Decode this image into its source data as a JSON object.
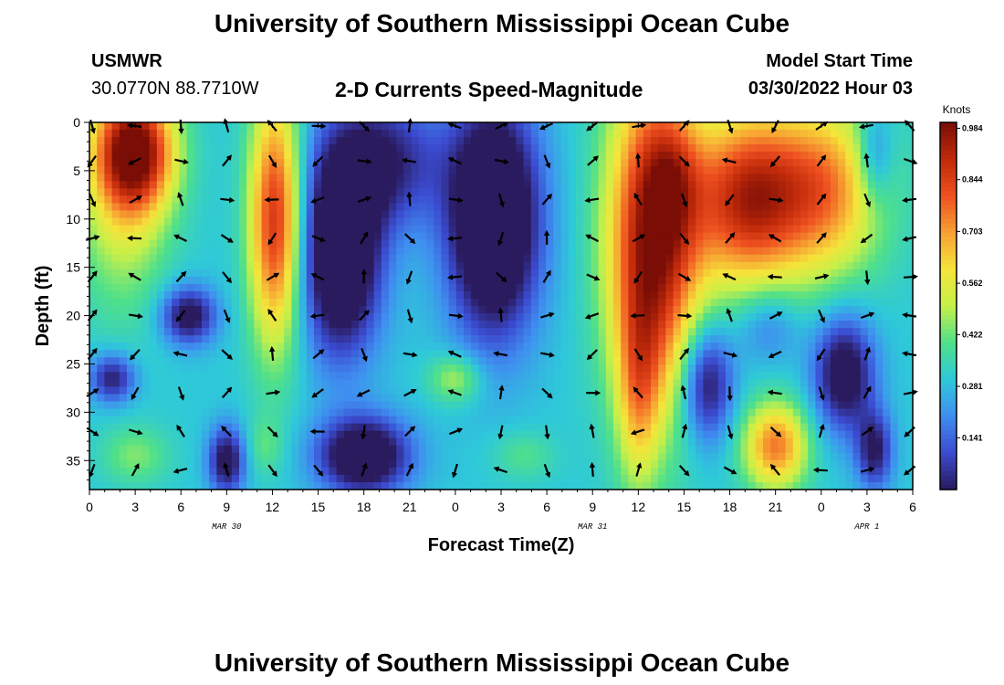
{
  "header": {
    "title": "University of Southern Mississippi Ocean Cube",
    "station": "USMWR",
    "coords": "30.0770N  88.7710W",
    "subtitle": "2-D Currents Speed-Magnitude",
    "model_label": "Model Start Time",
    "model_time": "03/30/2022 Hour 03"
  },
  "footer": {
    "title": "University of Southern Mississippi Ocean Cube"
  },
  "colors": {
    "arrow": "#000000",
    "colormap": [
      "#2a1a5e",
      "#3b4bd0",
      "#3f8ef0",
      "#2ec9d9",
      "#4fe08a",
      "#c5f04a",
      "#f5e43a",
      "#f7a032",
      "#ee5020",
      "#c02a0a",
      "#7a0d06"
    ]
  },
  "chart_data": {
    "type": "heatmap",
    "title": "2-D Currents Speed-Magnitude",
    "xlabel": "Forecast Time(Z)",
    "ylabel": "Depth (ft)",
    "x_range_hours": [
      0,
      54
    ],
    "x_ticks": [
      0,
      3,
      6,
      9,
      12,
      15,
      18,
      21,
      24,
      27,
      30,
      33,
      36,
      39,
      42,
      45,
      48,
      51,
      54
    ],
    "x_tick_labels": [
      "0",
      "3",
      "6",
      "9",
      "12",
      "15",
      "18",
      "21",
      "0",
      "3",
      "6",
      "9",
      "12",
      "15",
      "18",
      "21",
      "0",
      "3",
      "6"
    ],
    "date_labels": [
      {
        "hour": 9,
        "label": "MAR 30"
      },
      {
        "hour": 33,
        "label": "MAR 31"
      },
      {
        "hour": 51,
        "label": "APR 1"
      }
    ],
    "y_range_ft": [
      0,
      38
    ],
    "y_ticks": [
      0,
      5,
      10,
      15,
      20,
      25,
      30,
      35
    ],
    "y_tick_labels": [
      "0",
      "5",
      "10",
      "15",
      "20",
      "25",
      "30",
      "35"
    ],
    "colorbar": {
      "label": "Knots",
      "range": [
        0,
        1.0
      ],
      "ticks": [
        "0.984",
        "0.844",
        "0.703",
        "0.562",
        "0.422",
        "0.281",
        "0.141"
      ],
      "tick_values": [
        0.984,
        0.844,
        0.703,
        0.562,
        0.422,
        0.281,
        0.141
      ]
    },
    "arrow_depths_ft": [
      0,
      4,
      8,
      12,
      16,
      20,
      24,
      28,
      32,
      36
    ],
    "arrow_hours": [
      0,
      3,
      6,
      9,
      12,
      15,
      18,
      21,
      24,
      27,
      30,
      33,
      36,
      39,
      42,
      45,
      48,
      51,
      54
    ],
    "speed_features": [
      {
        "hour": 3,
        "depth": 3,
        "speed": 0.62,
        "sh": 2.5,
        "sd": 6
      },
      {
        "hour": 12.2,
        "depth": 10,
        "speed": 0.58,
        "sh": 1.7,
        "sd": 13
      },
      {
        "hour": 2.2,
        "depth": 7,
        "speed": 0.25,
        "sh": 3,
        "sd": 12
      },
      {
        "hour": 6.5,
        "depth": 20,
        "speed": -0.35,
        "sh": 1.8,
        "sd": 3
      },
      {
        "hour": 16.5,
        "depth": 14,
        "speed": -0.5,
        "sh": 2.6,
        "sd": 10
      },
      {
        "hour": 19,
        "depth": 4,
        "speed": -0.3,
        "sh": 4,
        "sd": 7
      },
      {
        "hour": 26.5,
        "depth": 10,
        "speed": -0.55,
        "sh": 3,
        "sd": 12
      },
      {
        "hour": 1.5,
        "depth": 26.5,
        "speed": -0.3,
        "sh": 1.5,
        "sd": 2.5
      },
      {
        "hour": 9,
        "depth": 35,
        "speed": -0.35,
        "sh": 1.2,
        "sd": 3.5
      },
      {
        "hour": 18,
        "depth": 34.5,
        "speed": -0.45,
        "sh": 3,
        "sd": 4
      },
      {
        "hour": 24,
        "depth": 26.5,
        "speed": 0.2,
        "sh": 1.7,
        "sd": 2.5
      },
      {
        "hour": 3,
        "depth": 34.5,
        "speed": 0.14,
        "sh": 2.2,
        "sd": 3
      },
      {
        "hour": 28.5,
        "depth": 34.5,
        "speed": 0.1,
        "sh": 2,
        "sd": 2.5
      },
      {
        "hour": 11.5,
        "depth": 33.5,
        "speed": 0.1,
        "sh": 1.2,
        "sd": 3
      },
      {
        "hour": 37,
        "depth": 12,
        "speed": 0.7,
        "sh": 3,
        "sd": 17
      },
      {
        "hour": 43,
        "depth": 8,
        "speed": 0.55,
        "sh": 3.5,
        "sd": 9
      },
      {
        "hour": 48,
        "depth": 7,
        "speed": 0.45,
        "sh": 4,
        "sd": 9
      },
      {
        "hour": 38.3,
        "depth": 6,
        "speed": 0.15,
        "sh": 1.7,
        "sd": 6
      },
      {
        "hour": 36,
        "depth": 28,
        "speed": 0.25,
        "sh": 1.4,
        "sd": 10
      },
      {
        "hour": 40.5,
        "depth": 27,
        "speed": -0.35,
        "sh": 1.7,
        "sd": 6
      },
      {
        "hour": 49.5,
        "depth": 26,
        "speed": -0.38,
        "sh": 2,
        "sd": 6
      },
      {
        "hour": 51.5,
        "depth": 34,
        "speed": -0.3,
        "sh": 1.2,
        "sd": 4
      },
      {
        "hour": 45,
        "depth": 33.5,
        "speed": 0.45,
        "sh": 2.1,
        "sd": 4.5
      },
      {
        "hour": 51.5,
        "depth": 3.5,
        "speed": -0.2,
        "sh": 1.2,
        "sd": 5
      },
      {
        "hour": 44.5,
        "depth": 21,
        "speed": -0.15,
        "sh": 2,
        "sd": 4
      }
    ]
  }
}
